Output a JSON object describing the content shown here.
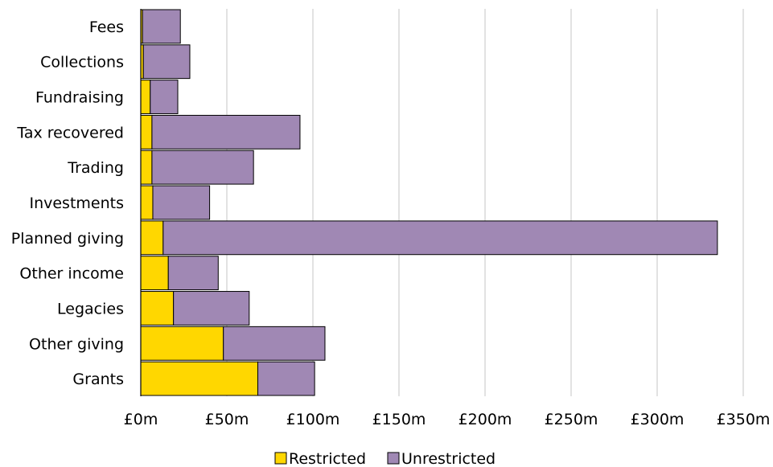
{
  "chart_data": {
    "type": "bar",
    "orientation": "horizontal",
    "stacked": true,
    "categories": [
      "Fees",
      "Collections",
      "Fundraising",
      "Tax recovered",
      "Trading",
      "Investments",
      "Planned giving",
      "Other income",
      "Legacies",
      "Other giving",
      "Grants"
    ],
    "series": [
      {
        "name": "Restricted",
        "color": "#FFD700",
        "values": [
          1,
          1.5,
          5.5,
          6.5,
          6.5,
          7,
          13,
          16,
          19,
          48,
          68
        ]
      },
      {
        "name": "Unrestricted",
        "color": "#A088B4",
        "values": [
          22,
          27,
          16,
          86,
          59,
          33,
          322,
          29,
          44,
          59,
          33
        ]
      }
    ],
    "x_ticks": [
      "£0m",
      "£50m",
      "£100m",
      "£150m",
      "£200m",
      "£250m",
      "£300m",
      "£350m"
    ],
    "xlim": [
      0,
      350
    ],
    "x_tick_step": 50,
    "grid": "vertical",
    "legend": "bottom-center",
    "title": "",
    "xlabel": "",
    "ylabel": ""
  }
}
